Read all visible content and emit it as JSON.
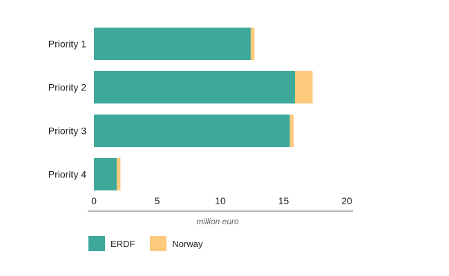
{
  "chart_data": {
    "type": "bar",
    "orientation": "horizontal",
    "stacked": true,
    "categories": [
      "Priority 1",
      "Priority 2",
      "Priority 3",
      "Priority 4"
    ],
    "series": [
      {
        "name": "ERDF",
        "color": "#3ea99a",
        "values": [
          12.4,
          15.9,
          15.5,
          1.8
        ]
      },
      {
        "name": "Norway",
        "color": "#fdca7b",
        "values": [
          0.3,
          1.4,
          0.3,
          0.3
        ]
      }
    ],
    "xlabel": "million euro",
    "ylabel": "",
    "xlim": [
      0,
      20
    ],
    "xticks": [
      0,
      5,
      10,
      15,
      20
    ],
    "grid": false,
    "legend_position": "bottom-left"
  }
}
